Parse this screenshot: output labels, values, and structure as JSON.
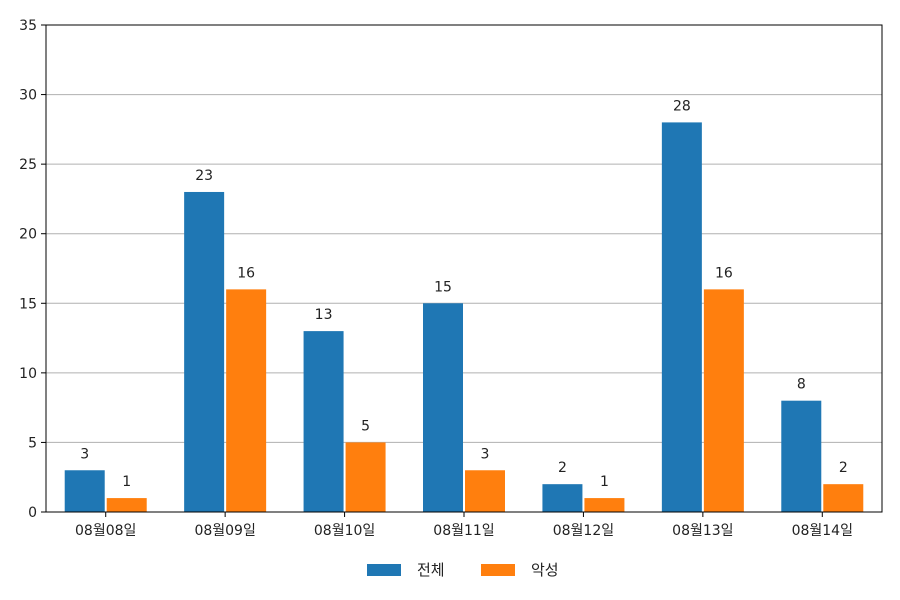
{
  "chart_data": {
    "type": "bar",
    "categories": [
      "08월08일",
      "08월09일",
      "08월10일",
      "08월11일",
      "08월12일",
      "08월13일",
      "08월14일"
    ],
    "series": [
      {
        "name": "전체",
        "values": [
          3,
          23,
          13,
          15,
          2,
          28,
          8
        ],
        "color": "#1f77b4"
      },
      {
        "name": "악성",
        "values": [
          1,
          16,
          5,
          3,
          1,
          16,
          2
        ],
        "color": "#ff7f0e"
      }
    ],
    "ylim": [
      0,
      35
    ],
    "yticks": [
      0,
      5,
      10,
      15,
      20,
      25,
      30,
      35
    ],
    "grid": "horizontal",
    "legend_position": "bottom-center",
    "data_labels": true
  }
}
